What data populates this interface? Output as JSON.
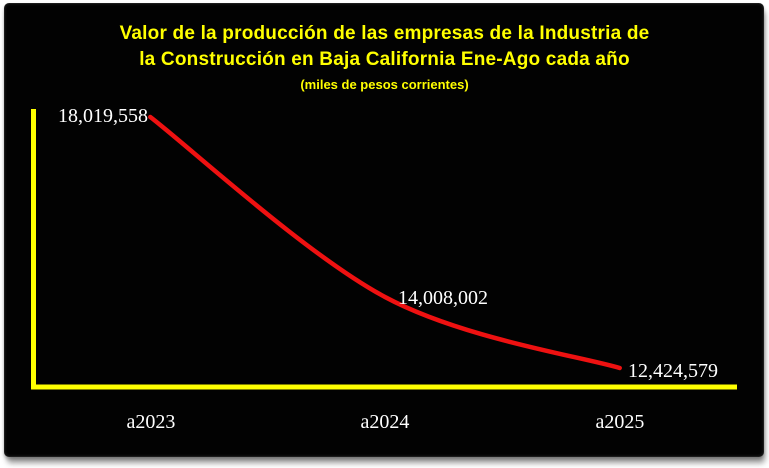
{
  "chart_data": {
    "type": "line",
    "smooth": true,
    "title": "Valor de la producción de las empresas de la Industria de la Construcción en Baja California Ene-Ago cada año",
    "title_lines": [
      "Valor de la producción de las empresas de la Industria de",
      "la Construcción en Baja California Ene-Ago cada año"
    ],
    "subtitle": "(miles de pesos corrientes)",
    "categories": [
      "a2023",
      "a2024",
      "a2025"
    ],
    "values": [
      18019558,
      14008002,
      12424579
    ],
    "data_labels": [
      "18,019,558",
      "14,008,002",
      "12,424,579"
    ],
    "legend_position": "none",
    "grid": false,
    "axes_shown": {
      "x": true,
      "y": true
    },
    "colors": {
      "background": "#020202",
      "title": "#FFFF00",
      "axis": "#FFFF00",
      "line": "#EE1111",
      "label": "#FFFFFF"
    }
  }
}
